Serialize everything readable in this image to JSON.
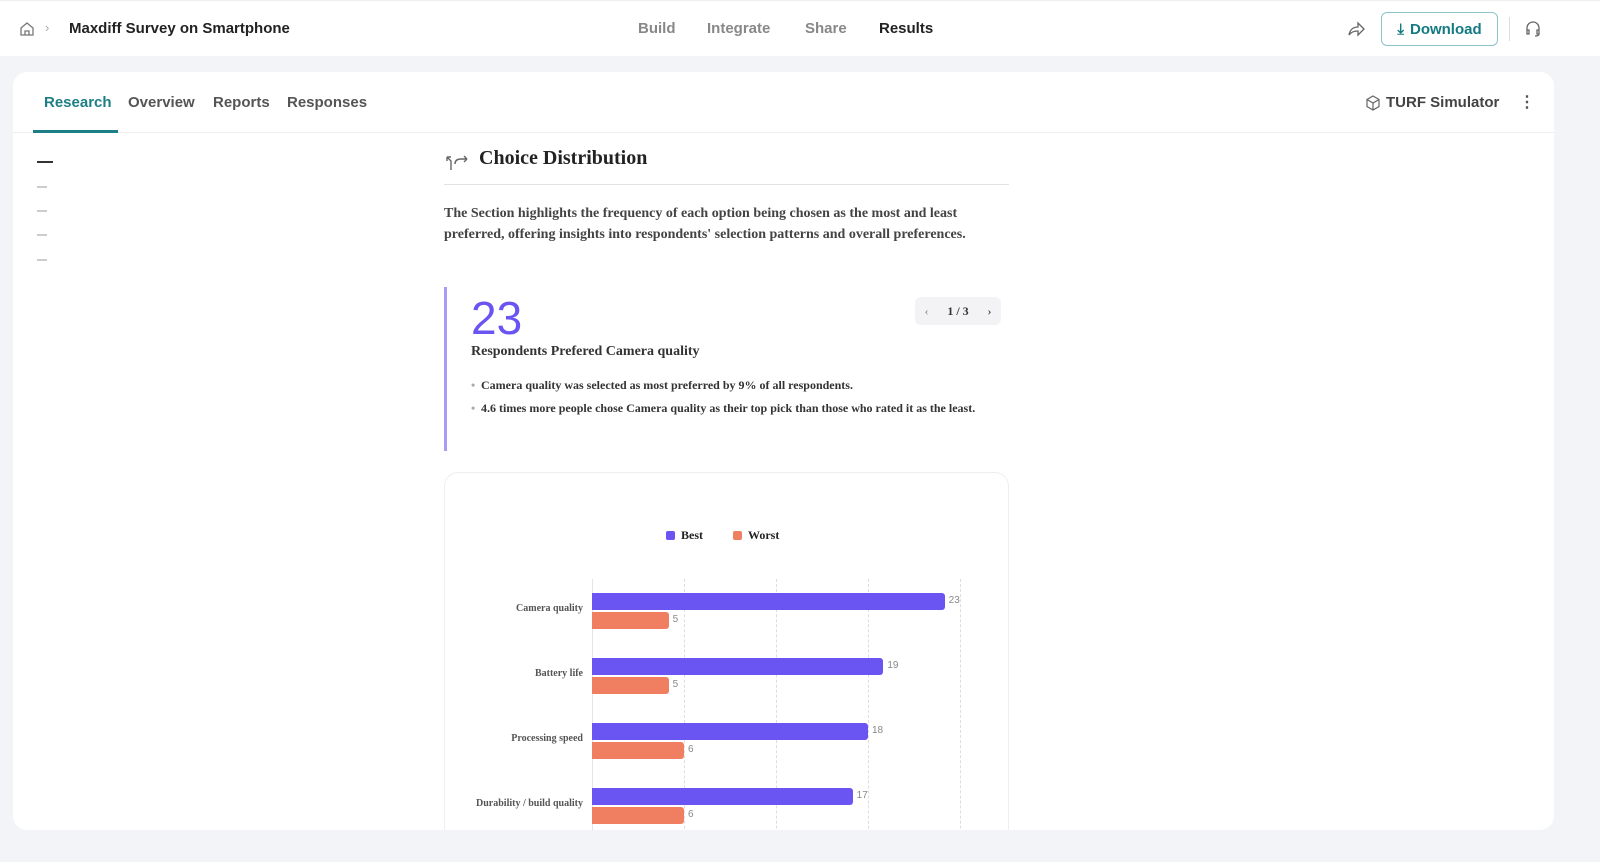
{
  "header": {
    "title": "Maxdiff Survey on Smartphone",
    "nav": [
      "Build",
      "Integrate",
      "Share",
      "Results"
    ],
    "active_nav": "Results",
    "download_label": "Download"
  },
  "tabs": {
    "items": [
      "Research",
      "Overview",
      "Reports",
      "Responses"
    ],
    "active": "Research",
    "turf_label": "TURF Simulator"
  },
  "section": {
    "title": "Choice Distribution",
    "description": "The Section highlights the frequency of each option being chosen as the most and least preferred, offering insights into respondents' selection patterns and overall preferences."
  },
  "insight": {
    "number": "23",
    "pager": "1 / 3",
    "subtitle": "Respondents Prefered Camera quality",
    "bullets": [
      "Camera quality was selected as most preferred by 9% of all respondents.",
      "4.6 times more people chose Camera quality as their top pick than those who rated it as the least."
    ]
  },
  "chart_data": {
    "type": "bar",
    "orientation": "horizontal",
    "categories": [
      "Camera quality",
      "Battery life",
      "Processing speed",
      "Durability / build quality"
    ],
    "series": [
      {
        "name": "Best",
        "color": "#6a54f2",
        "values": [
          23,
          19,
          18,
          17
        ]
      },
      {
        "name": "Worst",
        "color": "#f07f62",
        "values": [
          5,
          5,
          6,
          6
        ]
      }
    ],
    "xlim": [
      0,
      24
    ],
    "grid": true,
    "legend": "top"
  }
}
